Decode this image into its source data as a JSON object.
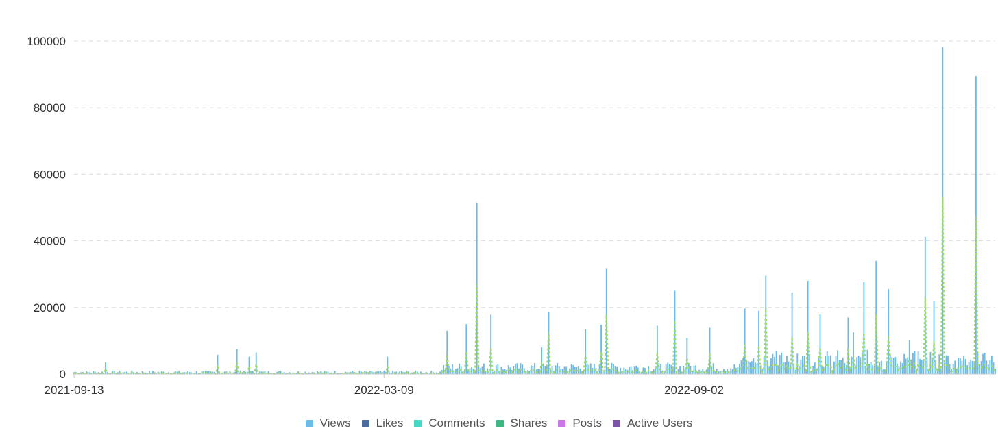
{
  "chart_data": {
    "type": "bar",
    "x_type": "date",
    "start_date": "2021-09-13",
    "end_date": "2023-02-21",
    "xtick_labels": [
      "2021-09-13",
      "2022-03-09",
      "2022-09-02"
    ],
    "ytick_labels": [
      "0",
      "20000",
      "40000",
      "60000",
      "80000",
      "100000"
    ],
    "ylim": [
      0,
      100000
    ],
    "grid": true,
    "legend_position": "bottom-center",
    "series": [
      {
        "name": "Views",
        "color": "#6bbbe6",
        "mark": "bar"
      },
      {
        "name": "Likes",
        "color": "#4a6b9c",
        "mark": "bar"
      },
      {
        "name": "Comments",
        "color": "#43d9c3",
        "mark": "bar"
      },
      {
        "name": "Shares",
        "color": "#3cb882",
        "mark": "line"
      },
      {
        "name": "Posts",
        "color": "#c978e6",
        "mark": "bar"
      },
      {
        "name": "Active Users",
        "color": "#7b55a8",
        "mark": "bar"
      }
    ],
    "views_peaks": [
      {
        "date": "2021-10-01",
        "value": 3500
      },
      {
        "date": "2021-12-04",
        "value": 5800
      },
      {
        "date": "2021-12-15",
        "value": 7500
      },
      {
        "date": "2021-12-22",
        "value": 5200
      },
      {
        "date": "2021-12-26",
        "value": 6500
      },
      {
        "date": "2022-03-11",
        "value": 5200
      },
      {
        "date": "2022-04-14",
        "value": 13000
      },
      {
        "date": "2022-04-25",
        "value": 15000
      },
      {
        "date": "2022-05-01",
        "value": 51500
      },
      {
        "date": "2022-05-09",
        "value": 17800
      },
      {
        "date": "2022-06-07",
        "value": 8000
      },
      {
        "date": "2022-06-11",
        "value": 18600
      },
      {
        "date": "2022-07-02",
        "value": 13400
      },
      {
        "date": "2022-07-11",
        "value": 14800
      },
      {
        "date": "2022-07-14",
        "value": 31800
      },
      {
        "date": "2022-08-12",
        "value": 14500
      },
      {
        "date": "2022-08-22",
        "value": 25000
      },
      {
        "date": "2022-08-29",
        "value": 10800
      },
      {
        "date": "2022-09-11",
        "value": 13900
      },
      {
        "date": "2022-10-01",
        "value": 19700
      },
      {
        "date": "2022-10-09",
        "value": 19000
      },
      {
        "date": "2022-10-13",
        "value": 29500
      },
      {
        "date": "2022-10-28",
        "value": 24500
      },
      {
        "date": "2022-11-06",
        "value": 28000
      },
      {
        "date": "2022-11-13",
        "value": 17900
      },
      {
        "date": "2022-11-29",
        "value": 17000
      },
      {
        "date": "2022-12-02",
        "value": 12500
      },
      {
        "date": "2022-12-08",
        "value": 27600
      },
      {
        "date": "2022-12-15",
        "value": 34000
      },
      {
        "date": "2022-12-22",
        "value": 25500
      },
      {
        "date": "2023-01-03",
        "value": 10200
      },
      {
        "date": "2023-01-12",
        "value": 41200
      },
      {
        "date": "2023-01-17",
        "value": 21800
      },
      {
        "date": "2023-01-22",
        "value": 98200
      },
      {
        "date": "2023-02-10",
        "value": 89500
      }
    ],
    "shares_peaks": [
      {
        "date": "2022-05-01",
        "value": 27000
      },
      {
        "date": "2022-06-11",
        "value": 12500
      },
      {
        "date": "2022-07-14",
        "value": 18000
      },
      {
        "date": "2022-08-22",
        "value": 16000
      },
      {
        "date": "2022-10-13",
        "value": 20000
      },
      {
        "date": "2022-12-15",
        "value": 18000
      },
      {
        "date": "2023-01-12",
        "value": 23000
      },
      {
        "date": "2023-01-22",
        "value": 53000
      },
      {
        "date": "2023-02-10",
        "value": 47000
      }
    ]
  }
}
